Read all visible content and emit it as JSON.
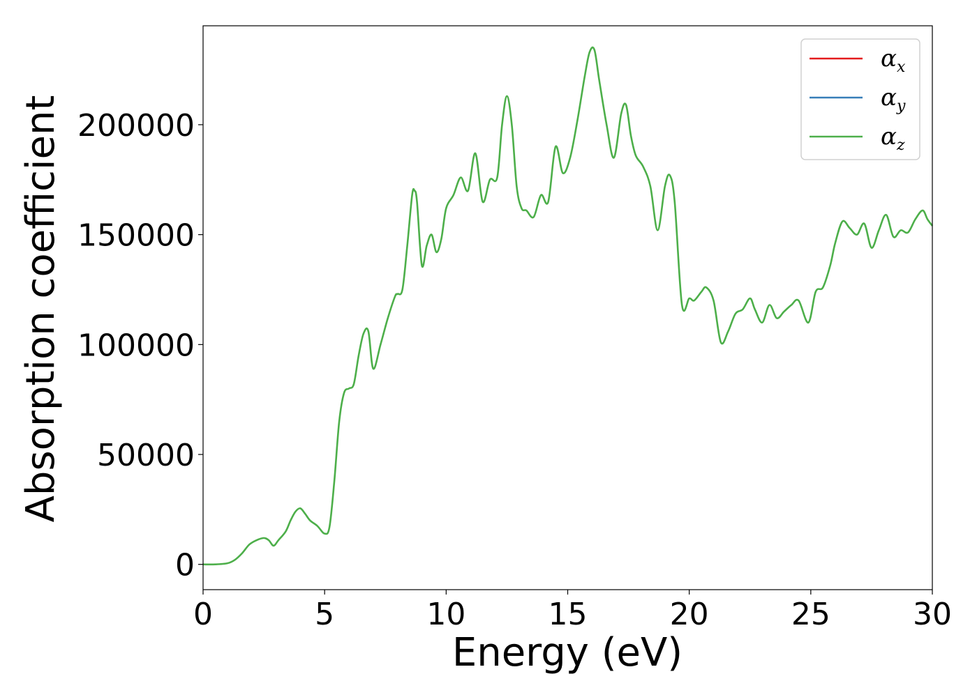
{
  "chart_data": {
    "type": "line",
    "title": "",
    "xlabel": "Energy (eV)",
    "ylabel": "Absorption coefficient",
    "xlim": [
      0,
      30
    ],
    "ylim": [
      -11500,
      245000
    ],
    "x_ticks": [
      0,
      5,
      10,
      15,
      20,
      25,
      30
    ],
    "x_tick_labels": [
      "0",
      "5",
      "10",
      "15",
      "20",
      "25",
      "30"
    ],
    "y_ticks": [
      0,
      50000,
      100000,
      150000,
      200000
    ],
    "y_tick_labels": [
      "0",
      "50000",
      "100000",
      "150000",
      "200000"
    ],
    "grid": false,
    "legend_position": "top-right",
    "legend": [
      {
        "symbol": "α",
        "subscript": "x",
        "color": "#e41a1c"
      },
      {
        "symbol": "α",
        "subscript": "y",
        "color": "#377eb8"
      },
      {
        "symbol": "α",
        "subscript": "z",
        "color": "#4daf4a"
      }
    ],
    "series": [
      {
        "color": "#4daf4a",
        "x": [
          0,
          0.5,
          1.0,
          1.3,
          1.6,
          1.9,
          2.2,
          2.5,
          2.7,
          2.9,
          3.1,
          3.4,
          3.6,
          3.8,
          4.0,
          4.2,
          4.4,
          4.7,
          5.0,
          5.2,
          5.4,
          5.6,
          5.8,
          6.0,
          6.2,
          6.4,
          6.6,
          6.8,
          7.0,
          7.3,
          7.6,
          7.9,
          8.0,
          8.2,
          8.4,
          8.6,
          8.7,
          8.8,
          9.0,
          9.2,
          9.4,
          9.6,
          9.8,
          10.0,
          10.3,
          10.6,
          10.9,
          11.2,
          11.5,
          11.8,
          12.1,
          12.3,
          12.5,
          12.7,
          12.9,
          13.1,
          13.3,
          13.6,
          13.9,
          14.2,
          14.5,
          14.8,
          15.1,
          15.4,
          15.7,
          15.9,
          16.1,
          16.3,
          16.6,
          16.9,
          17.2,
          17.4,
          17.6,
          17.8,
          18.1,
          18.4,
          18.7,
          19.0,
          19.2,
          19.4,
          19.7,
          20.0,
          20.2,
          20.5,
          20.7,
          21.0,
          21.3,
          21.6,
          21.9,
          22.2,
          22.5,
          22.7,
          23.0,
          23.3,
          23.6,
          23.9,
          24.2,
          24.5,
          24.9,
          25.2,
          25.5,
          25.8,
          26.0,
          26.3,
          26.6,
          26.9,
          27.2,
          27.5,
          27.8,
          28.1,
          28.4,
          28.7,
          29.0,
          29.3,
          29.6,
          29.8,
          30.0
        ],
        "values": [
          0,
          0,
          500,
          2000,
          5000,
          9000,
          11000,
          12000,
          11000,
          8500,
          11000,
          15000,
          20000,
          24000,
          25500,
          23000,
          20000,
          17500,
          14000,
          17000,
          38000,
          65000,
          78000,
          80000,
          82000,
          95000,
          105000,
          106000,
          89000,
          100000,
          112000,
          122000,
          123000,
          125000,
          145000,
          168000,
          170000,
          165000,
          136000,
          145000,
          150000,
          142000,
          148000,
          162000,
          168000,
          176000,
          170000,
          187000,
          165000,
          175000,
          176000,
          200000,
          213000,
          200000,
          172000,
          162000,
          161000,
          158000,
          168000,
          165000,
          190000,
          178000,
          185000,
          202000,
          222000,
          233000,
          234000,
          220000,
          200000,
          185000,
          205000,
          209000,
          195000,
          186000,
          181000,
          172000,
          152000,
          172000,
          177000,
          165000,
          118000,
          121000,
          120000,
          124000,
          126000,
          120000,
          101000,
          106000,
          114000,
          116000,
          121000,
          116000,
          110000,
          118000,
          112000,
          115000,
          118000,
          120000,
          110000,
          124000,
          126000,
          136000,
          146000,
          156000,
          153000,
          150000,
          155000,
          144000,
          152000,
          159000,
          149000,
          152000,
          151000,
          157000,
          161000,
          157000,
          154000
        ]
      }
    ]
  }
}
